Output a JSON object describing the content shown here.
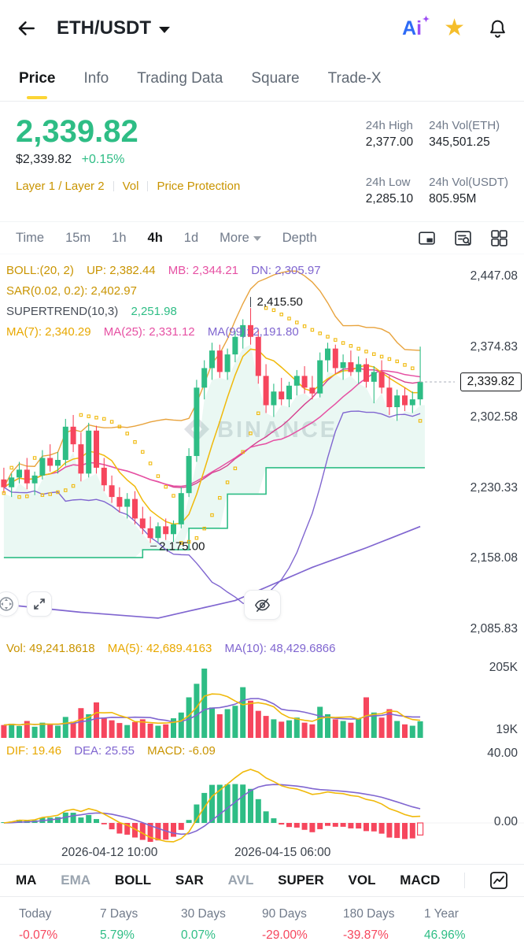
{
  "header": {
    "symbol": "ETH/USDT",
    "ai": {
      "a": "A",
      "i": "i"
    }
  },
  "icons": {
    "star": "★",
    "sparkle": "✦"
  },
  "tabs": [
    "Price",
    "Info",
    "Trading Data",
    "Square",
    "Trade-X"
  ],
  "ticker": {
    "last_price": "2,339.82",
    "fiat_price": "$2,339.82",
    "change_pct": "+0.15%",
    "tags": [
      "Layer 1 / Layer 2",
      "Vol",
      "Price Protection"
    ],
    "stats": [
      {
        "label": "24h High",
        "value": "2,377.00"
      },
      {
        "label": "24h Vol(ETH)",
        "value": "345,501.25"
      },
      {
        "label": "24h Low",
        "value": "2,285.10"
      },
      {
        "label": "24h Vol(USDT)",
        "value": "805.95M"
      }
    ]
  },
  "timeframe_bar": {
    "items": [
      "Time",
      "15m",
      "1h",
      "4h",
      "1d"
    ],
    "active": "4h",
    "more": "More",
    "depth": "Depth"
  },
  "legend": {
    "boll_label": "BOLL:(20, 2)",
    "boll_up": "UP: 2,382.44",
    "boll_mb": "MB: 2,344.21",
    "boll_dn": "DN: 2,305.97",
    "sar": "SAR(0.02, 0.2): 2,402.97",
    "supertrend_label": "SUPERTREND(10,3)",
    "supertrend_value": "2,251.98",
    "ma7": "MA(7): 2,340.29",
    "ma25": "MA(25): 2,331.12",
    "ma99": "MA(99): 2,191.80"
  },
  "price_axis": [
    "2,447.08",
    "2,374.83",
    "2,302.58",
    "2,230.33",
    "2,158.08",
    "2,085.83"
  ],
  "watermark": "BINANCE",
  "vol_pane": {
    "vol": "Vol: 49,241.8618",
    "ma5": "MA(5): 42,689.4163",
    "ma10": "MA(10): 48,429.6866",
    "axis_top": "205K",
    "axis_bottom": "19K"
  },
  "macd_pane": {
    "dif": "DIF: 19.46",
    "dea": "DEA: 25.55",
    "macd": "MACD: -6.09",
    "axis_top": "40.00",
    "axis_zero": "0.00"
  },
  "time_axis": [
    "2026-04-12 10:00",
    "2026-04-15 06:00"
  ],
  "indicator_bar": [
    "MA",
    "EMA",
    "BOLL",
    "SAR",
    "AVL",
    "SUPER",
    "VOL",
    "MACD"
  ],
  "performance": {
    "labels": [
      "Today",
      "7 Days",
      "30 Days",
      "90 Days",
      "180 Days",
      "1 Year"
    ],
    "values": [
      "-0.07%",
      "5.79%",
      "0.07%",
      "-29.00%",
      "-39.87%",
      "46.96%"
    ]
  },
  "chart_data": {
    "type": "candlestick",
    "symbol": "ETH/USDT",
    "interval": "4h",
    "y_axis": {
      "top": 2447.08,
      "bottom": 2085.83
    },
    "last_price": 2339.82,
    "high_annotation": {
      "index": 32,
      "price": 2415.5,
      "label": "2,415.50"
    },
    "low_annotation": {
      "index": 19,
      "price": 2175.0,
      "label": "2,175.00"
    },
    "candles": [
      [
        2240,
        2252,
        2226,
        2232
      ],
      [
        2232,
        2246,
        2222,
        2242
      ],
      [
        2242,
        2258,
        2236,
        2250
      ],
      [
        2250,
        2262,
        2230,
        2236
      ],
      [
        2236,
        2248,
        2224,
        2244
      ],
      [
        2244,
        2270,
        2240,
        2262
      ],
      [
        2262,
        2276,
        2248,
        2254
      ],
      [
        2254,
        2268,
        2246,
        2260
      ],
      [
        2260,
        2302,
        2254,
        2294
      ],
      [
        2294,
        2306,
        2268,
        2276
      ],
      [
        2276,
        2288,
        2238,
        2246
      ],
      [
        2246,
        2298,
        2242,
        2290
      ],
      [
        2290,
        2295,
        2246,
        2252
      ],
      [
        2252,
        2262,
        2228,
        2234
      ],
      [
        2234,
        2244,
        2216,
        2222
      ],
      [
        2222,
        2232,
        2206,
        2212
      ],
      [
        2212,
        2226,
        2200,
        2220
      ],
      [
        2220,
        2228,
        2194,
        2200
      ],
      [
        2200,
        2212,
        2184,
        2190
      ],
      [
        2190,
        2202,
        2175,
        2180
      ],
      [
        2180,
        2196,
        2176,
        2192
      ],
      [
        2192,
        2200,
        2178,
        2184
      ],
      [
        2184,
        2198,
        2176,
        2194
      ],
      [
        2194,
        2232,
        2190,
        2226
      ],
      [
        2226,
        2272,
        2222,
        2264
      ],
      [
        2264,
        2342,
        2258,
        2334
      ],
      [
        2334,
        2362,
        2322,
        2354
      ],
      [
        2354,
        2380,
        2342,
        2372
      ],
      [
        2372,
        2378,
        2344,
        2350
      ],
      [
        2350,
        2374,
        2342,
        2368
      ],
      [
        2368,
        2392,
        2360,
        2386
      ],
      [
        2386,
        2404,
        2374,
        2398
      ],
      [
        2398,
        2415.5,
        2378,
        2386
      ],
      [
        2386,
        2394,
        2338,
        2346
      ],
      [
        2346,
        2358,
        2308,
        2316
      ],
      [
        2316,
        2338,
        2304,
        2330
      ],
      [
        2330,
        2344,
        2316,
        2322
      ],
      [
        2322,
        2340,
        2314,
        2336
      ],
      [
        2336,
        2352,
        2326,
        2346
      ],
      [
        2346,
        2356,
        2328,
        2334
      ],
      [
        2334,
        2346,
        2322,
        2328
      ],
      [
        2328,
        2370,
        2324,
        2362
      ],
      [
        2362,
        2380,
        2350,
        2374
      ],
      [
        2374,
        2378,
        2348,
        2354
      ],
      [
        2354,
        2368,
        2342,
        2360
      ],
      [
        2360,
        2372,
        2346,
        2350
      ],
      [
        2350,
        2366,
        2338,
        2358
      ],
      [
        2358,
        2364,
        2334,
        2340
      ],
      [
        2340,
        2356,
        2318,
        2350
      ],
      [
        2350,
        2362,
        2328,
        2334
      ],
      [
        2334,
        2346,
        2306,
        2314
      ],
      [
        2314,
        2332,
        2300,
        2326
      ],
      [
        2326,
        2334,
        2310,
        2316
      ],
      [
        2316,
        2330,
        2308,
        2322
      ],
      [
        2322,
        2376,
        2316,
        2339.82
      ]
    ],
    "volumes_k": [
      38,
      42,
      35,
      50,
      33,
      45,
      40,
      36,
      62,
      48,
      88,
      70,
      105,
      60,
      52,
      44,
      38,
      47,
      55,
      42,
      36,
      40,
      58,
      75,
      120,
      160,
      205,
      90,
      70,
      85,
      95,
      150,
      110,
      80,
      65,
      55,
      48,
      52,
      60,
      45,
      40,
      92,
      70,
      55,
      50,
      45,
      58,
      120,
      75,
      60,
      85,
      50,
      40,
      36,
      49
    ],
    "vol_axis": {
      "top_k": 205,
      "bottom_k": 19
    },
    "supertrend_steps": [
      [
        0,
        17,
        2160
      ],
      [
        18,
        23,
        2168
      ],
      [
        24,
        28,
        2190
      ],
      [
        29,
        33,
        2225
      ],
      [
        34,
        54,
        2252
      ]
    ],
    "ma99_points": [
      [
        0,
        2112
      ],
      [
        10,
        2104
      ],
      [
        20,
        2098
      ],
      [
        30,
        2116
      ],
      [
        40,
        2150
      ],
      [
        47,
        2170
      ],
      [
        54,
        2191.8
      ]
    ],
    "colors": {
      "up": "#2EBD85",
      "down": "#F6465D",
      "ma7": "#F0B90B",
      "ma25": "#E650A3",
      "ma99": "#8066D0",
      "boll_up": "#E8A33D",
      "boll_mb": "#D63F8E",
      "boll_dn": "#8066D0",
      "sar": "#F0B90B",
      "supertrend": "#2EBD85",
      "vol_ma5": "#F0B90B",
      "vol_ma10": "#8066D0",
      "dif": "#F0B90B",
      "dea": "#8066D0"
    }
  }
}
